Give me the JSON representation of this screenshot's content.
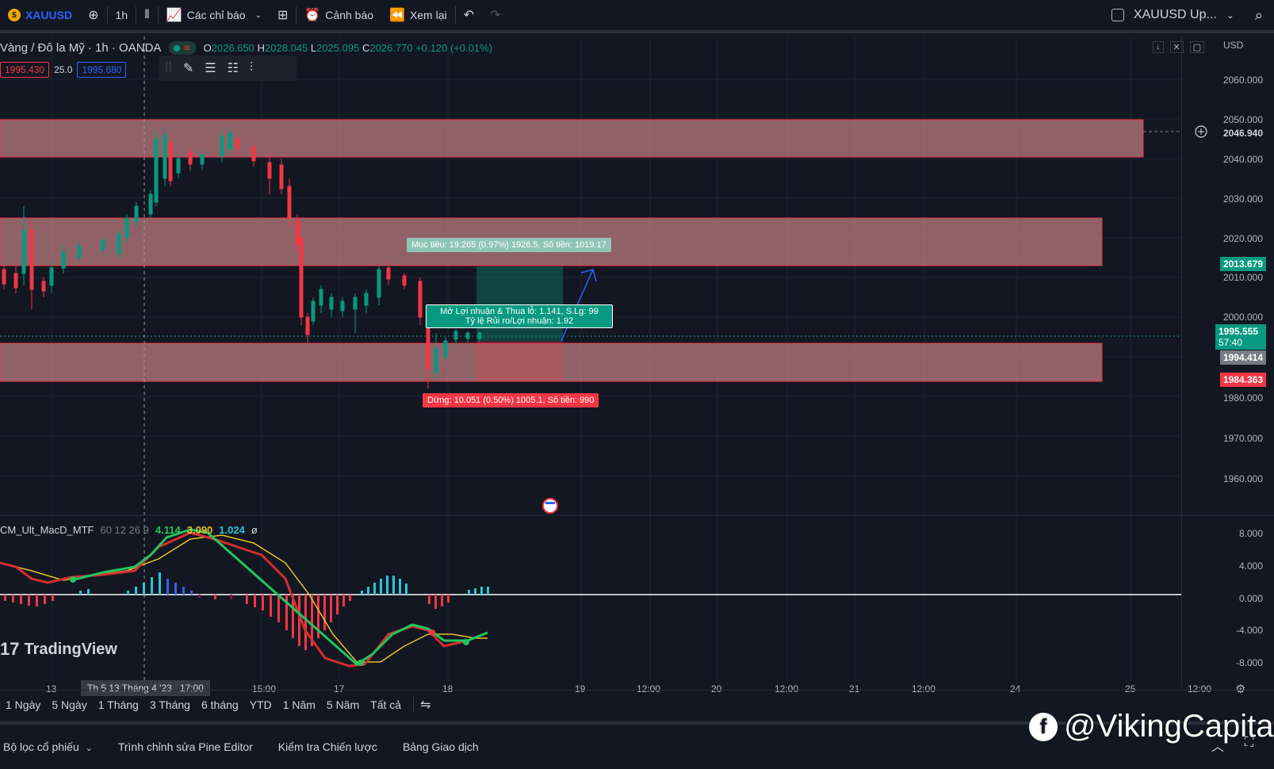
{
  "topbar": {
    "symbol": "XAUUSD",
    "interval": "1h",
    "indicators_label": "Các chỉ báo",
    "alerts_label": "Cảnh báo",
    "replay_label": "Xem lại",
    "watchlist_label": "XAUUSD Up..."
  },
  "legend": {
    "title": "Vàng / Đô la Mỹ · 1h · OANDA",
    "open_label": "O",
    "open": "2026.650",
    "high_label": "H",
    "high": "2028.045",
    "low_label": "L",
    "low": "2025.095",
    "close_label": "C",
    "close": "2026.770",
    "change": "+0.120 (+0.01%)"
  },
  "quote": {
    "bid": "1995.430",
    "spread": "25.0",
    "ask": "1995.680"
  },
  "currency": "USD",
  "price_axis": [
    "2060.000",
    "2050.000",
    "2040.000",
    "2030.000",
    "2020.000",
    "2010.000",
    "2000.000",
    "1980.000",
    "1970.000",
    "1960.000"
  ],
  "price_tags": {
    "top_level": "2046.940",
    "target_level": "2013.679",
    "current": "1995.555",
    "countdown": "57:40",
    "entry": "1994.414",
    "stop_level": "1984.363"
  },
  "macd_axis": [
    "8.000",
    "4.000",
    "0.000",
    "-4.000",
    "-8.000"
  ],
  "position": {
    "target_label": "Mục tiêu: 19.265 (0.97%) 1926.5, Số tiền: 1019.17",
    "info_line1": "Mở Lợi nhuận & Thua lỗ: 1.141, S.Lg: 99",
    "info_line2": "Tỷ lệ Rủi ro/Lợi nhuận: 1.92",
    "stop_label": "Dừng: 10.051 (0.50%) 1005.1, Số tiền: 990"
  },
  "macd": {
    "name": "CM_Ult_MacD_MTF",
    "params": "60 12 26 9",
    "v1": "4.114",
    "v2": "3.090",
    "v3": "1.024",
    "v4": "ø"
  },
  "time_axis": [
    "13",
    "15:00",
    "17",
    "18",
    "19",
    "12:00",
    "20",
    "12:00",
    "21",
    "12:00",
    "24",
    "25",
    "12:00"
  ],
  "crosshair_time": "Th 5 13 Tháng 4 '23   17:00",
  "ranges": [
    "1 Ngày",
    "5 Ngày",
    "1 Tháng",
    "3 Tháng",
    "6 tháng",
    "YTD",
    "1 Năm",
    "5 Năm",
    "Tất cả"
  ],
  "bottom_tabs": [
    "Bộ lọc cổ phiếu",
    "Trình chỉnh sửa Pine Editor",
    "Kiểm tra Chiến lược",
    "Bảng Giao dịch"
  ],
  "branding": {
    "tradingview": "TradingView",
    "watermark": "@VikingCapital"
  },
  "colors": {
    "up": "#089981",
    "down": "#f23645",
    "zone": "#f7a1a1",
    "accent": "#2962ff"
  }
}
